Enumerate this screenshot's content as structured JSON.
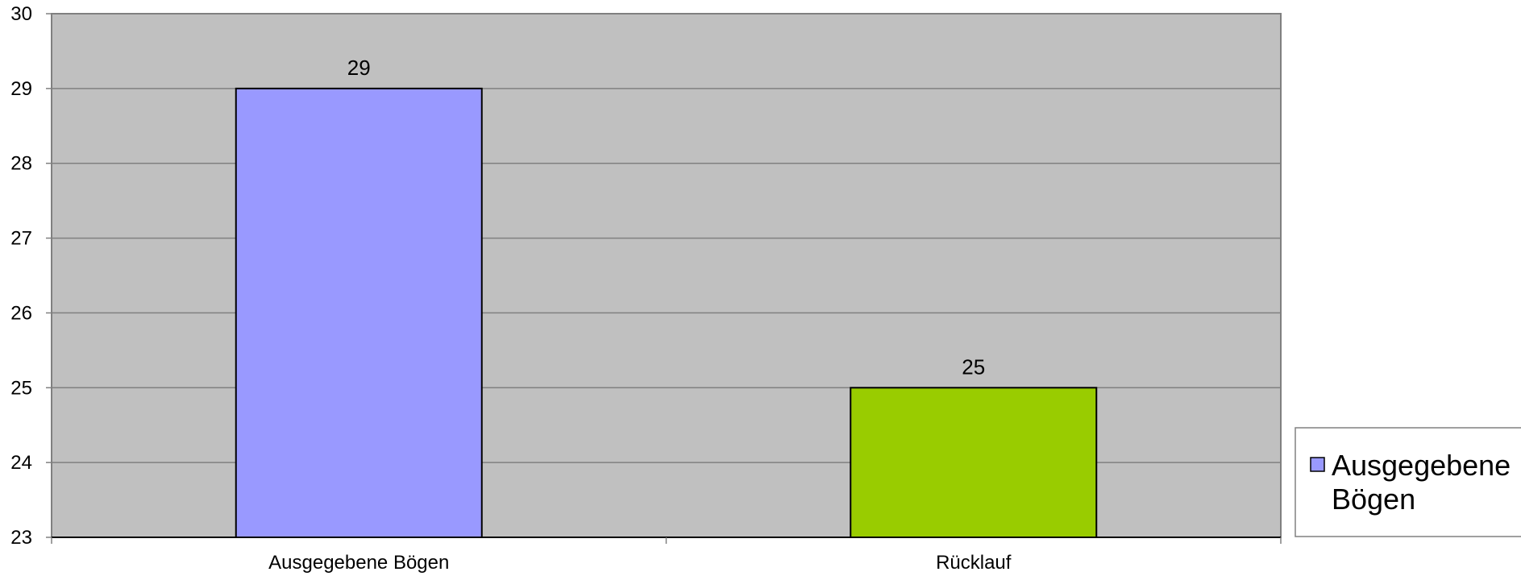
{
  "chart_data": {
    "type": "bar",
    "categories": [
      "Ausgegebene Bögen",
      "Rücklauf"
    ],
    "values": [
      29,
      25
    ],
    "data_labels": [
      "29",
      "25"
    ],
    "bar_colors": [
      "#9999ff",
      "#99cc00"
    ],
    "plot_background": "#c0c0c0",
    "ylim": [
      23,
      30
    ],
    "yticks": [
      23,
      24,
      25,
      26,
      27,
      28,
      29,
      30
    ],
    "grid": true,
    "legend": {
      "position": "right",
      "entries": [
        {
          "lines": [
            "Ausgegebene",
            "Bögen"
          ],
          "color": "#9999ff"
        }
      ]
    }
  }
}
